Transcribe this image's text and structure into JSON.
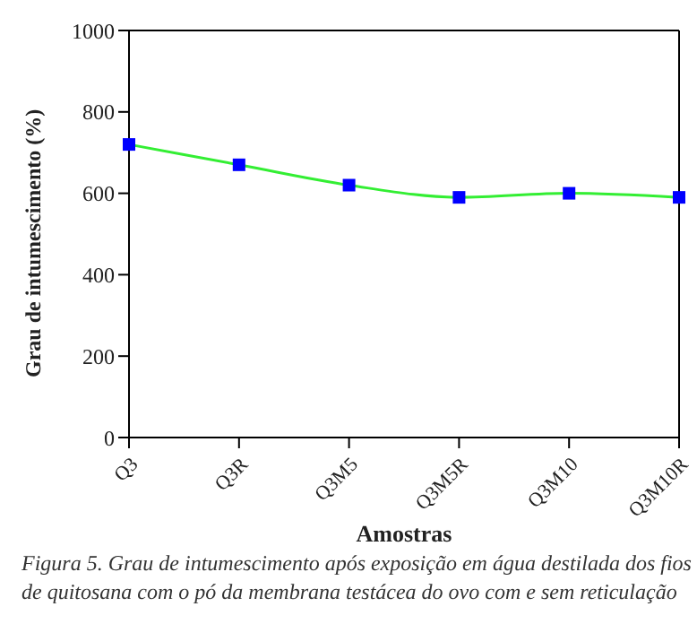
{
  "chart_data": {
    "type": "line",
    "xlabel": "Amostras",
    "ylabel": "Grau de intumescimento (%)",
    "categories": [
      "Q3",
      "Q3R",
      "Q3M5",
      "Q3M5R",
      "Q3M10",
      "Q3M10R"
    ],
    "series": [
      {
        "color": "#33ee33",
        "colors": [
          "#0000ff",
          "#0000ff",
          "#0000ff",
          "#0000ff",
          "#0000ff",
          "#0000ff"
        ],
        "values": [
          720,
          670,
          620,
          590,
          600,
          590
        ]
      }
    ],
    "ylim": [
      0,
      1000
    ],
    "yticks": [
      0,
      200,
      400,
      600,
      800,
      1000
    ],
    "grid": false,
    "legend": false,
    "marker": "square",
    "line_style": "solid",
    "annotations": [
      "Figura 5. Grau de intumescimento após exposição em água destilada dos fios de quitosana com o pó da membrana testácea do ovo com e sem reticulação"
    ]
  }
}
